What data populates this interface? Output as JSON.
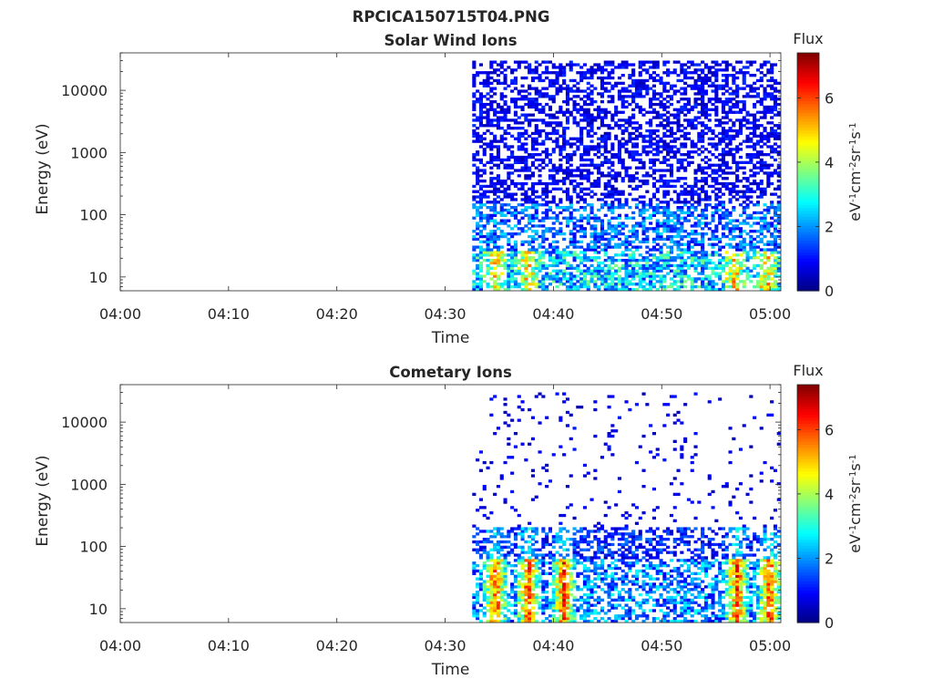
{
  "figure": {
    "title": "RPCICA150715T04.PNG"
  },
  "chart_data": [
    {
      "type": "heatmap",
      "title": "Solar Wind Ions",
      "xlabel": "Time",
      "ylabel": "Energy (eV)",
      "xlim": [
        "04:00",
        "05:01"
      ],
      "ylim": [
        6,
        40000
      ],
      "yscale": "log",
      "x_ticks": [
        "04:00",
        "04:10",
        "04:20",
        "04:30",
        "04:40",
        "04:50",
        "05:00"
      ],
      "y_ticks": [
        "10",
        "100",
        "1000",
        "10000"
      ],
      "data_start": "04:32:30",
      "colorbar": {
        "title": "Flux",
        "label": "eV-1cm-2sr-1s-1",
        "range": [
          0,
          7.4
        ],
        "ticks": [
          "0",
          "2",
          "4",
          "6"
        ],
        "colormap": "jet"
      },
      "description": "Broad low-intensity (0-2) flux across 10 eV - 30 keV after 04:32:30; higher intensity (3-5) bursts near 10-30 eV around 04:34, 04:37, 04:56 and 04:59."
    },
    {
      "type": "heatmap",
      "title": "Cometary Ions",
      "xlabel": "Time",
      "ylabel": "Energy (eV)",
      "xlim": [
        "04:00",
        "05:01"
      ],
      "ylim": [
        6,
        40000
      ],
      "yscale": "log",
      "x_ticks": [
        "04:00",
        "04:10",
        "04:20",
        "04:30",
        "04:40",
        "04:50",
        "05:00"
      ],
      "y_ticks": [
        "10",
        "100",
        "1000",
        "10000"
      ],
      "data_start": "04:32:30",
      "colorbar": {
        "title": "Flux",
        "label": "eV-1cm-2sr-1s-1",
        "range": [
          0,
          7.4
        ],
        "ticks": [
          "0",
          "2",
          "4",
          "6"
        ],
        "colormap": "jet"
      },
      "description": "Sparse low flux above 200 eV; dense flux below 100 eV with intense (5-7) bursts near 10-40 eV around 04:34, 04:37, 04:40, 04:56 and 04:59."
    }
  ]
}
